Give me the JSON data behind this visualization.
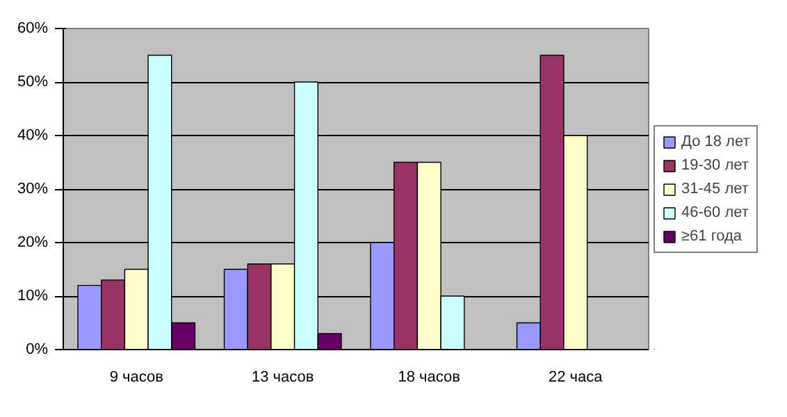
{
  "chart_data": {
    "type": "bar",
    "categories": [
      "9 часов",
      "13 часов",
      "18 часов",
      "22 часа"
    ],
    "series": [
      {
        "name": "До 18 лет",
        "color": "#9999ff",
        "values": [
          12,
          15,
          20,
          5
        ]
      },
      {
        "name": "19-30 лет",
        "color": "#993366",
        "values": [
          13,
          16,
          35,
          55
        ]
      },
      {
        "name": "31-45 лет",
        "color": "#ffffcc",
        "values": [
          15,
          16,
          35,
          40
        ]
      },
      {
        "name": "46-60 лет",
        "color": "#ccffff",
        "values": [
          55,
          50,
          10,
          null
        ]
      },
      {
        "name": "≥61 года",
        "color": "#660066",
        "values": [
          5,
          3,
          null,
          null
        ]
      }
    ],
    "ylim": [
      0,
      60
    ],
    "yticks": [
      {
        "value": 0,
        "label": "0%"
      },
      {
        "value": 10,
        "label": "10%"
      },
      {
        "value": 20,
        "label": "20%"
      },
      {
        "value": 30,
        "label": "30%"
      },
      {
        "value": 40,
        "label": "40%"
      },
      {
        "value": 50,
        "label": "50%"
      },
      {
        "value": 60,
        "label": "60%"
      }
    ],
    "grid": "y",
    "legend": "right"
  }
}
